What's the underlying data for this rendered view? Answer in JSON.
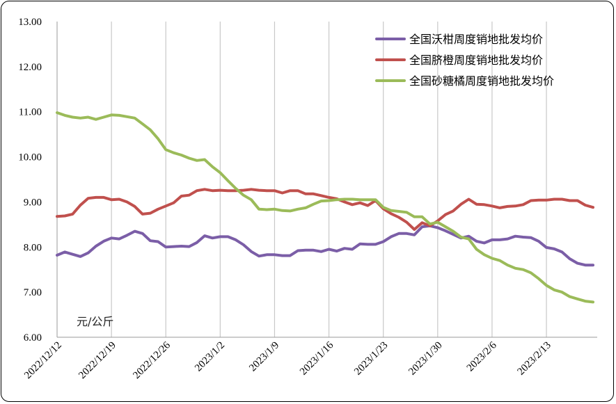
{
  "chart_data": {
    "type": "line",
    "title": "",
    "xlabel": "",
    "ylabel": "",
    "unit_label": "元/公斤",
    "ylim": [
      6.0,
      13.0
    ],
    "y_ticks": [
      "6.00",
      "7.00",
      "8.00",
      "9.00",
      "10.00",
      "11.00",
      "12.00",
      "13.00"
    ],
    "x_tick_labels": [
      "2022/12/12",
      "2022/12/19",
      "2022/12/26",
      "2023/1/2",
      "2023/1/9",
      "2023/1/16",
      "2023/1/23",
      "2023/1/30",
      "2023/2/6",
      "2023/2/13"
    ],
    "grid": "vertical",
    "legend_position": "top-right",
    "x": [
      "2022/12/12",
      "2022/12/13",
      "2022/12/14",
      "2022/12/15",
      "2022/12/16",
      "2022/12/17",
      "2022/12/18",
      "2022/12/19",
      "2022/12/20",
      "2022/12/21",
      "2022/12/22",
      "2022/12/23",
      "2022/12/24",
      "2022/12/25",
      "2022/12/26",
      "2022/12/27",
      "2022/12/28",
      "2022/12/29",
      "2022/12/30",
      "2022/12/31",
      "2023/1/1",
      "2023/1/2",
      "2023/1/3",
      "2023/1/4",
      "2023/1/5",
      "2023/1/6",
      "2023/1/7",
      "2023/1/8",
      "2023/1/9",
      "2023/1/10",
      "2023/1/11",
      "2023/1/12",
      "2023/1/13",
      "2023/1/14",
      "2023/1/15",
      "2023/1/16",
      "2023/1/17",
      "2023/1/18",
      "2023/1/19",
      "2023/1/20",
      "2023/1/21",
      "2023/1/22",
      "2023/1/23",
      "2023/1/24",
      "2023/1/25",
      "2023/1/26",
      "2023/1/27",
      "2023/1/28",
      "2023/1/29",
      "2023/1/30",
      "2023/1/31",
      "2023/2/1",
      "2023/2/2",
      "2023/2/3",
      "2023/2/4",
      "2023/2/5",
      "2023/2/6",
      "2023/2/7",
      "2023/2/8",
      "2023/2/9",
      "2023/2/10",
      "2023/2/11",
      "2023/2/12",
      "2023/2/13",
      "2023/2/14",
      "2023/2/15",
      "2023/2/16",
      "2023/2/17",
      "2023/2/18",
      "2023/2/19"
    ],
    "series": [
      {
        "name": "全国沃柑周度销地批发均价",
        "color": "#7b5ea7",
        "values": [
          7.82,
          7.89,
          7.84,
          7.79,
          7.87,
          8.02,
          8.13,
          8.2,
          8.18,
          8.26,
          8.35,
          8.3,
          8.14,
          8.12,
          8.0,
          8.01,
          8.02,
          8.01,
          8.1,
          8.25,
          8.2,
          8.23,
          8.23,
          8.16,
          8.05,
          7.9,
          7.8,
          7.83,
          7.83,
          7.81,
          7.81,
          7.92,
          7.93,
          7.93,
          7.9,
          7.95,
          7.91,
          7.97,
          7.95,
          8.07,
          8.06,
          8.06,
          8.12,
          8.23,
          8.3,
          8.3,
          8.27,
          8.45,
          8.47,
          8.43,
          8.36,
          8.28,
          8.2,
          8.24,
          8.13,
          8.09,
          8.16,
          8.16,
          8.18,
          8.24,
          8.22,
          8.21,
          8.13,
          7.99,
          7.96,
          7.89,
          7.74,
          7.64,
          7.6,
          7.6
        ]
      },
      {
        "name": "全国脐橙周度销地批发均价",
        "color": "#c0504d",
        "values": [
          8.68,
          8.69,
          8.73,
          8.93,
          9.08,
          9.1,
          9.1,
          9.05,
          9.06,
          9.0,
          8.9,
          8.73,
          8.75,
          8.84,
          8.91,
          8.98,
          9.13,
          9.15,
          9.25,
          9.28,
          9.25,
          9.26,
          9.25,
          9.25,
          9.26,
          9.28,
          9.26,
          9.25,
          9.25,
          9.2,
          9.25,
          9.25,
          9.18,
          9.18,
          9.14,
          9.1,
          9.07,
          9.0,
          8.94,
          8.98,
          8.92,
          9.03,
          8.85,
          8.74,
          8.66,
          8.55,
          8.39,
          8.54,
          8.47,
          8.58,
          8.72,
          8.8,
          8.95,
          9.06,
          8.95,
          8.94,
          8.91,
          8.87,
          8.9,
          8.91,
          8.94,
          9.03,
          9.04,
          9.04,
          9.06,
          9.06,
          9.03,
          9.03,
          8.93,
          8.88
        ]
      },
      {
        "name": "全国砂糖橘周度销地批发均价",
        "color": "#9bbb59",
        "values": [
          10.98,
          10.92,
          10.88,
          10.86,
          10.88,
          10.83,
          10.88,
          10.93,
          10.92,
          10.89,
          10.86,
          10.73,
          10.6,
          10.4,
          10.16,
          10.09,
          10.04,
          9.97,
          9.92,
          9.94,
          9.78,
          9.65,
          9.47,
          9.3,
          9.15,
          9.05,
          8.84,
          8.83,
          8.84,
          8.81,
          8.8,
          8.84,
          8.87,
          8.95,
          9.02,
          9.03,
          9.05,
          9.06,
          9.06,
          9.05,
          9.05,
          9.05,
          8.88,
          8.81,
          8.79,
          8.77,
          8.67,
          8.67,
          8.51,
          8.55,
          8.45,
          8.35,
          8.22,
          8.18,
          7.95,
          7.83,
          7.75,
          7.7,
          7.6,
          7.53,
          7.5,
          7.43,
          7.3,
          7.15,
          7.05,
          7.0,
          6.9,
          6.85,
          6.8,
          6.78
        ]
      }
    ]
  }
}
